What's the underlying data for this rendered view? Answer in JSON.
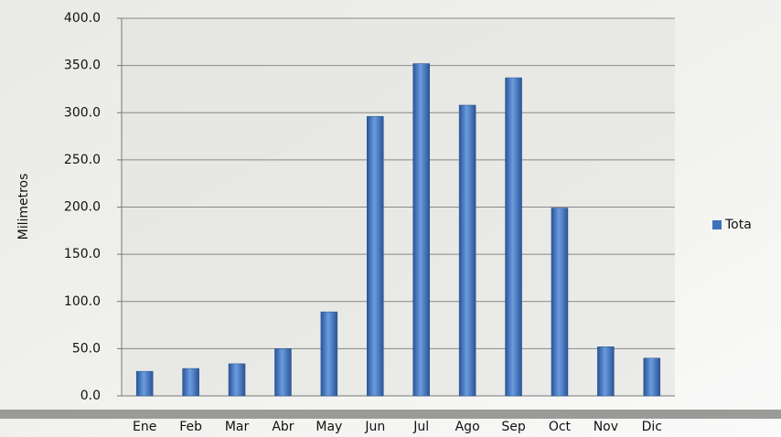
{
  "chart_data": {
    "type": "bar",
    "y_label": "Milimetros",
    "categories": [
      "Ene",
      "Feb",
      "Mar",
      "Abr",
      "May",
      "Jun",
      "Jul",
      "Ago",
      "Sep",
      "Oct",
      "Nov",
      "Dic"
    ],
    "series": [
      {
        "name": "Tota",
        "color": "#3f72bd",
        "values": [
          26,
          29,
          34,
          50,
          89,
          296,
          352,
          308,
          337,
          199,
          52,
          40
        ]
      }
    ],
    "ylim": [
      0,
      400
    ],
    "yticks": [
      {
        "value": 0,
        "label": "0.0"
      },
      {
        "value": 50,
        "label": "50.0"
      },
      {
        "value": 100,
        "label": "100.0"
      },
      {
        "value": 150,
        "label": "150.0"
      },
      {
        "value": 200,
        "label": "200.0"
      },
      {
        "value": 250,
        "label": "250.0"
      },
      {
        "value": 300,
        "label": "300.0"
      },
      {
        "value": 350,
        "label": "350.0"
      },
      {
        "value": 400,
        "label": "400.0"
      }
    ],
    "grid": true,
    "legend": "right"
  }
}
